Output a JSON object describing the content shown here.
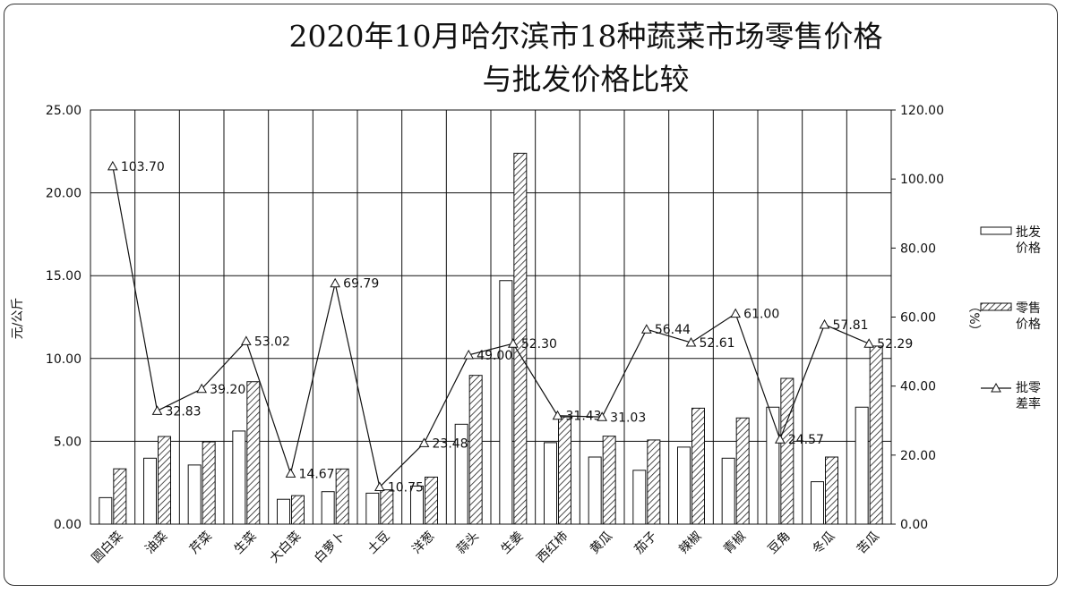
{
  "chart_data": {
    "type": "bar",
    "title_lines": [
      "2020年10月哈尔滨市18种蔬菜市场零售价格",
      "与批发价格比较"
    ],
    "ylabel_left": "元/公斤",
    "ylabel_right": "（%）",
    "ylim_left": [
      0,
      25
    ],
    "ylim_right": [
      0,
      120
    ],
    "yticks_left": [
      "0.00",
      "5.00",
      "10.00",
      "15.00",
      "20.00",
      "25.00"
    ],
    "yticks_right": [
      "0.00",
      "20.00",
      "40.00",
      "60.00",
      "80.00",
      "100.00",
      "120.00"
    ],
    "grid": "horizontal and vertical",
    "legend_position": "right",
    "categories": [
      "圆白菜",
      "油菜",
      "芹菜",
      "生菜",
      "大白菜",
      "白萝卜",
      "土豆",
      "洋葱",
      "蒜头",
      "生姜",
      "西红柿",
      "黄瓜",
      "茄子",
      "辣椒",
      "青椒",
      "豆角",
      "冬瓜",
      "苦瓜"
    ],
    "series": [
      {
        "name": "批发价格",
        "legend_lines": [
          "批发",
          "价格"
        ],
        "axis": "left",
        "kind": "bar",
        "fill": "#ffffff",
        "values": [
          1.6,
          3.98,
          3.57,
          5.62,
          1.5,
          1.96,
          1.87,
          2.3,
          6.03,
          14.7,
          4.92,
          4.05,
          3.25,
          4.65,
          3.98,
          7.06,
          2.56,
          7.06
        ]
      },
      {
        "name": "零售价格",
        "legend_lines": [
          "零售",
          "价格"
        ],
        "axis": "left",
        "kind": "bar",
        "fill": "hatched",
        "values": [
          3.34,
          5.29,
          4.97,
          8.6,
          1.72,
          3.33,
          2.07,
          2.84,
          8.98,
          22.39,
          6.47,
          5.31,
          5.08,
          7.0,
          6.41,
          8.8,
          4.05,
          10.75
        ]
      },
      {
        "name": "批零差率",
        "legend_lines": [
          "批零",
          "差率"
        ],
        "axis": "right",
        "kind": "line",
        "marker": "triangle",
        "values": [
          103.7,
          32.83,
          39.2,
          53.02,
          14.67,
          69.79,
          10.75,
          23.48,
          49.0,
          52.3,
          31.43,
          31.03,
          56.44,
          52.61,
          61.0,
          24.57,
          57.81,
          52.29
        ],
        "labels": [
          "103.70",
          "32.83",
          "39.20",
          "53.02",
          "14.67",
          "69.79",
          "10.75",
          "23.48",
          "49.00",
          "52.30",
          "31.43",
          "31.03",
          "56.44",
          "52.61",
          "61.00",
          "24.57",
          "57.81",
          "52.29"
        ]
      }
    ]
  }
}
